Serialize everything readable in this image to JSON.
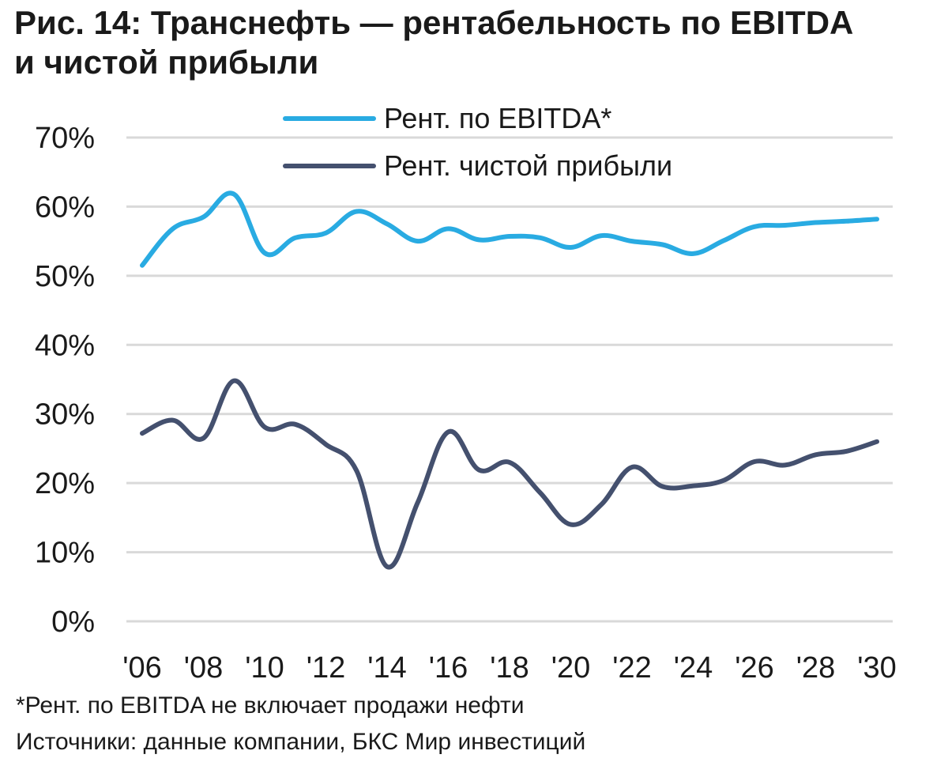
{
  "title_line1": "Рис. 14: Транснефть — рентабельность по EBITDA",
  "title_line2": "и чистой прибыли",
  "footnote": "*Рент. по EBITDA не включает продажи нефти",
  "source": "Источники: данные компании, БКС Мир инвестиций",
  "colors": {
    "ebitda": "#29ABE2",
    "net": "#44506E",
    "grid": "#d9d9d9"
  },
  "chart_data": {
    "type": "line",
    "x_tick_labels": [
      "'06",
      "'08",
      "'10",
      "'12",
      "'14",
      "'16",
      "'18",
      "'20",
      "'22",
      "'24",
      "'26",
      "'28",
      "'30"
    ],
    "y_tick_labels": [
      "0%",
      "10%",
      "20%",
      "30%",
      "40%",
      "50%",
      "60%",
      "70%"
    ],
    "ylim": [
      0,
      70
    ],
    "y_ticks": [
      0,
      10,
      20,
      30,
      40,
      50,
      60,
      70
    ],
    "x": [
      2006,
      2007,
      2008,
      2009,
      2010,
      2011,
      2012,
      2013,
      2014,
      2015,
      2016,
      2017,
      2018,
      2019,
      2020,
      2021,
      2022,
      2023,
      2024,
      2025,
      2026,
      2027,
      2028,
      2029,
      2030
    ],
    "xlim": [
      2006,
      2030
    ],
    "grid": true,
    "legend_position": "top",
    "series": [
      {
        "name": "Рент. по EBITDA*",
        "color": "#29ABE2",
        "values": [
          51.5,
          56.8,
          58.5,
          61.8,
          53.3,
          55.5,
          56.2,
          59.3,
          57.5,
          55.0,
          56.8,
          55.2,
          55.7,
          55.5,
          54.1,
          55.8,
          55.0,
          54.5,
          53.2,
          55.1,
          57.1,
          57.3,
          57.7,
          57.9,
          58.2
        ]
      },
      {
        "name": "Рент. чистой прибыли",
        "color": "#44506E",
        "values": [
          27.2,
          29.1,
          26.5,
          34.8,
          28.1,
          28.5,
          25.6,
          21.8,
          7.9,
          17.2,
          27.4,
          21.9,
          23.0,
          18.6,
          14.0,
          16.9,
          22.3,
          19.5,
          19.6,
          20.4,
          23.1,
          22.6,
          24.1,
          24.6,
          26.0
        ]
      }
    ]
  }
}
